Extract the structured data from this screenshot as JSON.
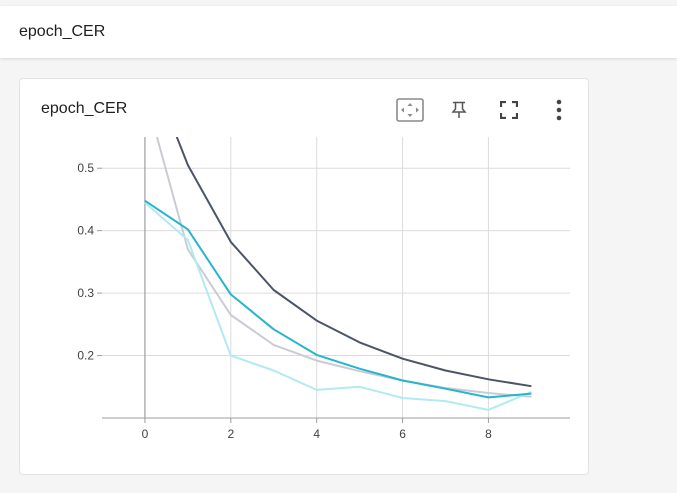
{
  "section": {
    "title": "epoch_CER"
  },
  "card": {
    "title": "epoch_CER"
  },
  "toolbar": {
    "fit_icon": "fit-domain-icon",
    "pin_icon": "pin-icon",
    "fullscreen_icon": "fullscreen-icon",
    "more_icon": "more-vert-icon"
  },
  "chart_data": {
    "type": "line",
    "title": "",
    "xlabel": "",
    "ylabel": "",
    "xlim": [
      -1,
      9.9
    ],
    "ylim": [
      0.1,
      0.55
    ],
    "x_ticks": [
      0,
      2,
      4,
      6,
      8
    ],
    "y_ticks": [
      0.2,
      0.3,
      0.4,
      0.5
    ],
    "grid": true,
    "series": [
      {
        "color": "#c9ccd4",
        "x": [
          0,
          1,
          2,
          3,
          4,
          5,
          6,
          7,
          8,
          9
        ],
        "values": [
          0.62,
          0.37,
          0.265,
          0.217,
          0.192,
          0.175,
          0.16,
          0.148,
          0.14,
          0.134
        ]
      },
      {
        "color": "#b3eaf2",
        "x": [
          0,
          1,
          2,
          3,
          4,
          5,
          6,
          7,
          8,
          9
        ],
        "values": [
          0.445,
          0.385,
          0.2,
          0.176,
          0.145,
          0.15,
          0.132,
          0.127,
          0.113,
          0.142
        ]
      },
      {
        "color": "#4b5568",
        "x": [
          0,
          1,
          2,
          3,
          4,
          5,
          6,
          7,
          8,
          9
        ],
        "values": [
          0.68,
          0.505,
          0.382,
          0.305,
          0.256,
          0.221,
          0.195,
          0.176,
          0.162,
          0.151
        ]
      },
      {
        "color": "#26b5cc",
        "x": [
          0,
          1,
          2,
          3,
          4,
          5,
          6,
          7,
          8,
          9
        ],
        "values": [
          0.448,
          0.402,
          0.298,
          0.242,
          0.201,
          0.179,
          0.16,
          0.147,
          0.133,
          0.139
        ]
      }
    ]
  }
}
